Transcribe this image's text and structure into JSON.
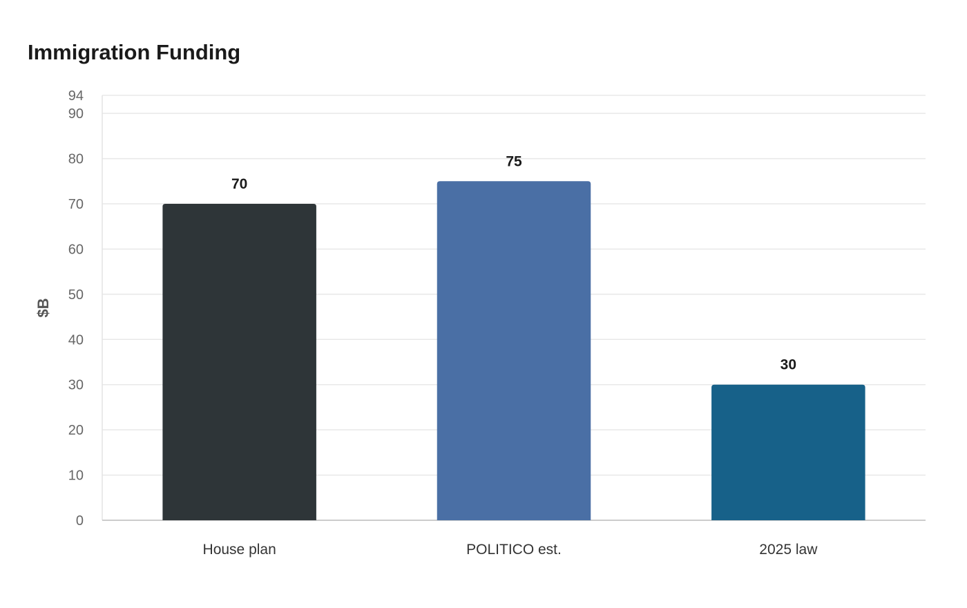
{
  "chart_data": {
    "type": "bar",
    "title": "Immigration Funding",
    "xlabel": "",
    "ylabel": "$B",
    "categories": [
      "House plan",
      "POLITICO est.",
      "2025 law"
    ],
    "values": [
      70,
      75,
      30
    ],
    "value_labels": [
      "70",
      "75",
      "30"
    ],
    "colors": [
      "#2e3538",
      "#4a6fa5",
      "#176189"
    ],
    "ylim": [
      0,
      94
    ],
    "yticks": [
      0,
      10,
      20,
      30,
      40,
      50,
      60,
      70,
      80,
      90,
      94
    ],
    "grid": true,
    "legend": "none"
  }
}
